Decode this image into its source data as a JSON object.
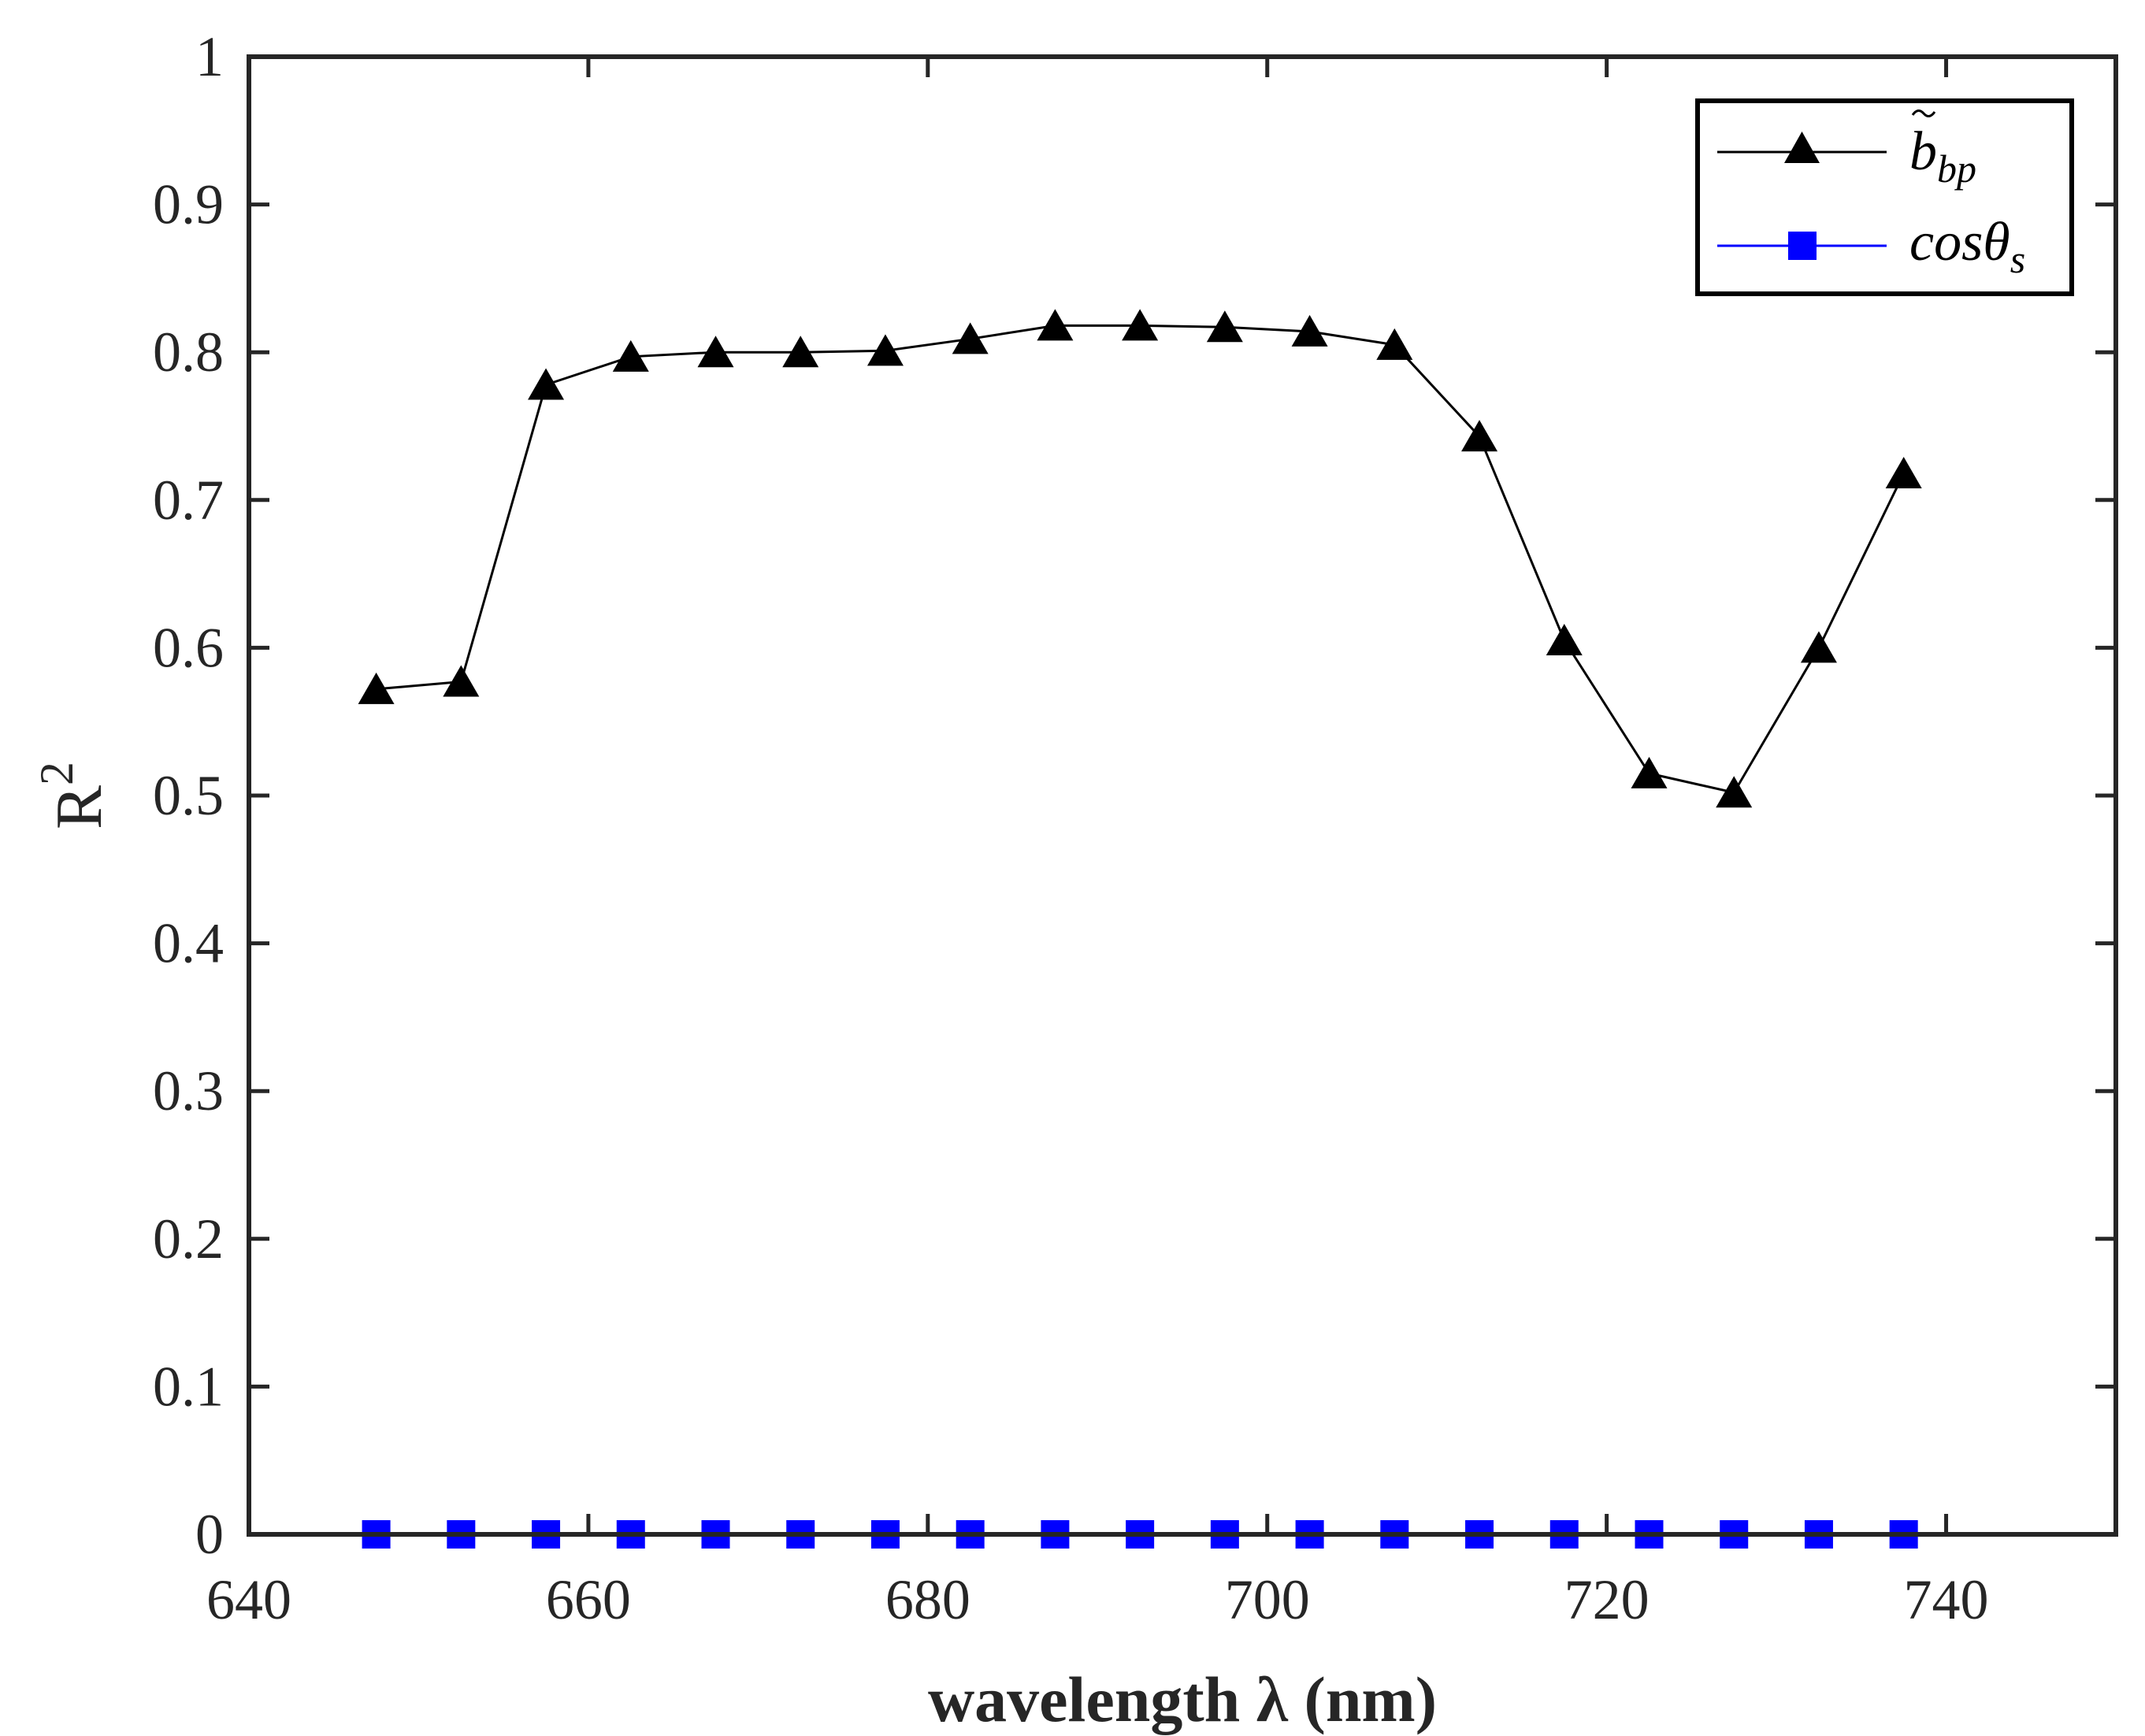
{
  "chart_data": {
    "type": "line",
    "title": "",
    "xlabel": "wavelength λ (nm)",
    "ylabel": "R",
    "ylabel_superscript": "2",
    "xlim": [
      640,
      750
    ],
    "ylim": [
      0,
      1
    ],
    "xticks": [
      "640",
      "660",
      "680",
      "700",
      "720",
      "740"
    ],
    "xtick_values": [
      640,
      660,
      680,
      700,
      720,
      740
    ],
    "yticks": [
      "0",
      "0.1",
      "0.2",
      "0.3",
      "0.4",
      "0.5",
      "0.6",
      "0.7",
      "0.8",
      "0.9",
      "1"
    ],
    "ytick_values": [
      0,
      0.1,
      0.2,
      0.3,
      0.4,
      0.5,
      0.6,
      0.7,
      0.8,
      0.9,
      1
    ],
    "grid": false,
    "legend_position": "top-right",
    "x": [
      647.5,
      652.5,
      657.5,
      662.5,
      667.5,
      672.5,
      677.5,
      682.5,
      687.5,
      692.5,
      697.5,
      702.5,
      707.5,
      712.5,
      717.5,
      722.5,
      727.5,
      732.5,
      737.5
    ],
    "series": [
      {
        "name": "b̃_bp",
        "legend_main": "b",
        "legend_sub": "bp",
        "marker": "triangle",
        "color": "#000000",
        "values": [
          0.572,
          0.577,
          0.778,
          0.797,
          0.8,
          0.8,
          0.801,
          0.809,
          0.818,
          0.818,
          0.817,
          0.814,
          0.805,
          0.743,
          0.605,
          0.515,
          0.502,
          0.6,
          0.718
        ]
      },
      {
        "name": "cosθ_s",
        "legend_main": "cosθ",
        "legend_sub": "s",
        "marker": "square",
        "color": "#0000ff",
        "values": [
          0,
          0,
          0,
          0,
          0,
          0,
          0,
          0,
          0,
          0,
          0,
          0,
          0,
          0,
          0,
          0,
          0,
          0,
          0
        ]
      }
    ]
  }
}
